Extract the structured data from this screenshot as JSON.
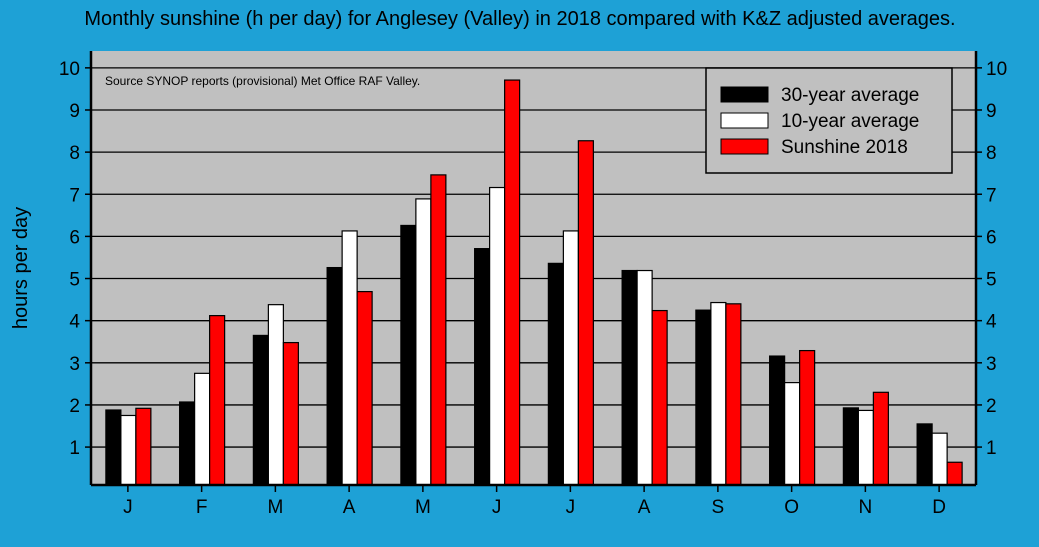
{
  "chart_data": {
    "type": "bar",
    "title": "Monthly sunshine (h per day) for Anglesey (Valley) in 2018 compared with K&Z adjusted averages.",
    "annotation": "Source SYNOP reports (provisional) Met Office RAF Valley.",
    "xlabel": "",
    "ylabel": "hours per day",
    "ylim": [
      0.1,
      10.4
    ],
    "yticks": [
      1,
      2,
      3,
      4,
      5,
      6,
      7,
      8,
      9,
      10
    ],
    "grid": true,
    "legend_position": "top-right",
    "categories": [
      "J",
      "F",
      "M",
      "A",
      "M",
      "J",
      "J",
      "A",
      "S",
      "O",
      "N",
      "D"
    ],
    "series": [
      {
        "name": "30-year average",
        "color": "#000000",
        "values": [
          1.88,
          2.07,
          3.65,
          5.26,
          6.26,
          5.71,
          5.36,
          5.19,
          4.25,
          3.16,
          1.93,
          1.55
        ]
      },
      {
        "name": "10-year average",
        "color": "#ffffff",
        "values": [
          1.75,
          2.75,
          4.38,
          6.13,
          6.89,
          7.16,
          6.13,
          5.19,
          4.43,
          2.53,
          1.87,
          1.33
        ]
      },
      {
        "name": "Sunshine 2018",
        "color": "#ff0000",
        "values": [
          1.92,
          4.12,
          3.48,
          4.69,
          7.46,
          9.71,
          8.27,
          4.24,
          4.4,
          3.29,
          2.3,
          0.64
        ]
      }
    ],
    "colors": {
      "background": "#1ea1d6",
      "plot_area": "#c0c0c0"
    }
  }
}
